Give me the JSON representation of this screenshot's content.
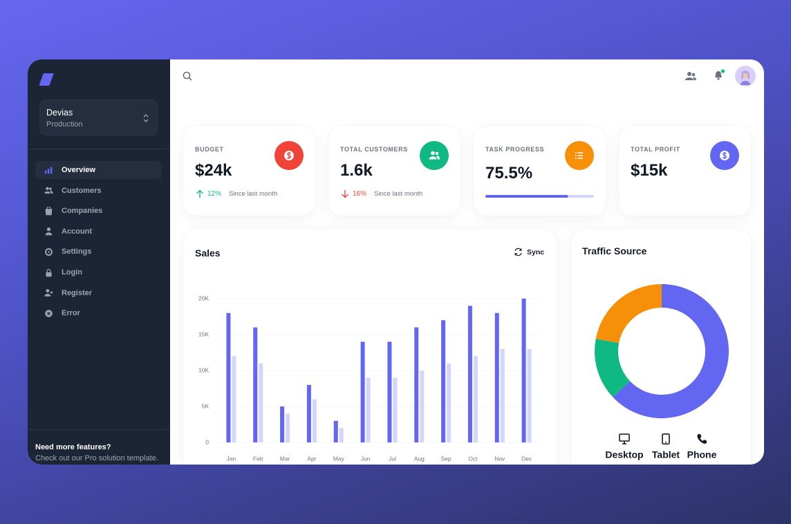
{
  "sidebar": {
    "workspace": {
      "name": "Devias",
      "environment": "Production"
    },
    "nav": [
      "Overview",
      "Customers",
      "Companies",
      "Account",
      "Settings",
      "Login",
      "Register",
      "Error"
    ],
    "active": 0,
    "promo": {
      "title": "Need more features?",
      "text": "Check out our Pro solution template."
    }
  },
  "stats": [
    {
      "label": "BUDGET",
      "value": "$24k",
      "change": "12%",
      "trend": "up",
      "caption": "Since last month",
      "color": "#f04438"
    },
    {
      "label": "TOTAL CUSTOMERS",
      "value": "1.6k",
      "change": "16%",
      "trend": "down",
      "caption": "Since last month",
      "color": "#10b981"
    },
    {
      "label": "TASK PROGRESS",
      "value": "75.5%",
      "progress": 75.5,
      "color": "#f79009"
    },
    {
      "label": "TOTAL PROFIT",
      "value": "$15k",
      "color": "#6366f1"
    }
  ],
  "chart_data": [
    {
      "type": "bar",
      "title": "Sales",
      "action": "Sync",
      "categories": [
        "Jan",
        "Feb",
        "Mar",
        "Apr",
        "May",
        "Jun",
        "Jul",
        "Aug",
        "Sep",
        "Oct",
        "Nov",
        "Dec"
      ],
      "series": [
        {
          "color": "#6366f1",
          "values": [
            18000,
            16000,
            5000,
            8000,
            3000,
            14000,
            14000,
            16000,
            17000,
            19000,
            18000,
            20000
          ]
        },
        {
          "color": "#d4d5fb",
          "values": [
            12000,
            11000,
            4000,
            6000,
            2000,
            9000,
            9000,
            10000,
            11000,
            12000,
            13000,
            13000
          ]
        }
      ],
      "ylim": [
        0,
        20000
      ],
      "yticks": [
        0,
        {
          "value": 5000,
          "label": "5K"
        },
        {
          "value": 10000,
          "label": "10K"
        },
        {
          "value": 15000,
          "label": "15K"
        },
        {
          "value": 20000,
          "label": "20K"
        }
      ],
      "grid": true
    },
    {
      "type": "donut",
      "title": "Traffic Source",
      "categories": [
        "Desktop",
        "Tablet",
        "Phone"
      ],
      "values": [
        63,
        15,
        22
      ],
      "colors": [
        "#6366f1",
        "#10b981",
        "#f79009"
      ]
    }
  ]
}
